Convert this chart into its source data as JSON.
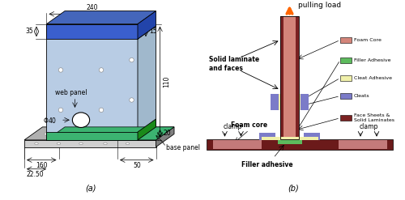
{
  "fig_width": 5.0,
  "fig_height": 2.47,
  "dpi": 100,
  "colors": {
    "blue_top": "#3A5FCD",
    "green_cleat": "#3CB371",
    "light_blue_web": "#B8CCE4",
    "panel_gray": "#B0B0B0",
    "light_gray": "#D0D0D0",
    "dark_gray": "#808080",
    "foam_core_pink": "#D4857A",
    "filler_green": "#5DBB5D",
    "cleat_adh_yellow": "#F0F0AA",
    "cleats_purple": "#7B7BC8",
    "face_dark": "#7B2222",
    "base_maroon": "#6B1A1A",
    "salmon_foam": "#C47A7A",
    "orange": "#FF6600",
    "black": "#000000",
    "white": "#FFFFFF"
  },
  "right_legend": [
    {
      "label": "Foam Core",
      "color": "#D4857A"
    },
    {
      "label": "Filler Adhesive",
      "color": "#5DBB5D"
    },
    {
      "label": "Cleat Adhesive",
      "color": "#F0F0AA"
    },
    {
      "label": "Cleats",
      "color": "#7B7BC8"
    },
    {
      "label": "Face Sheets &\nSolid Laminates",
      "color": "#7B2222"
    }
  ]
}
